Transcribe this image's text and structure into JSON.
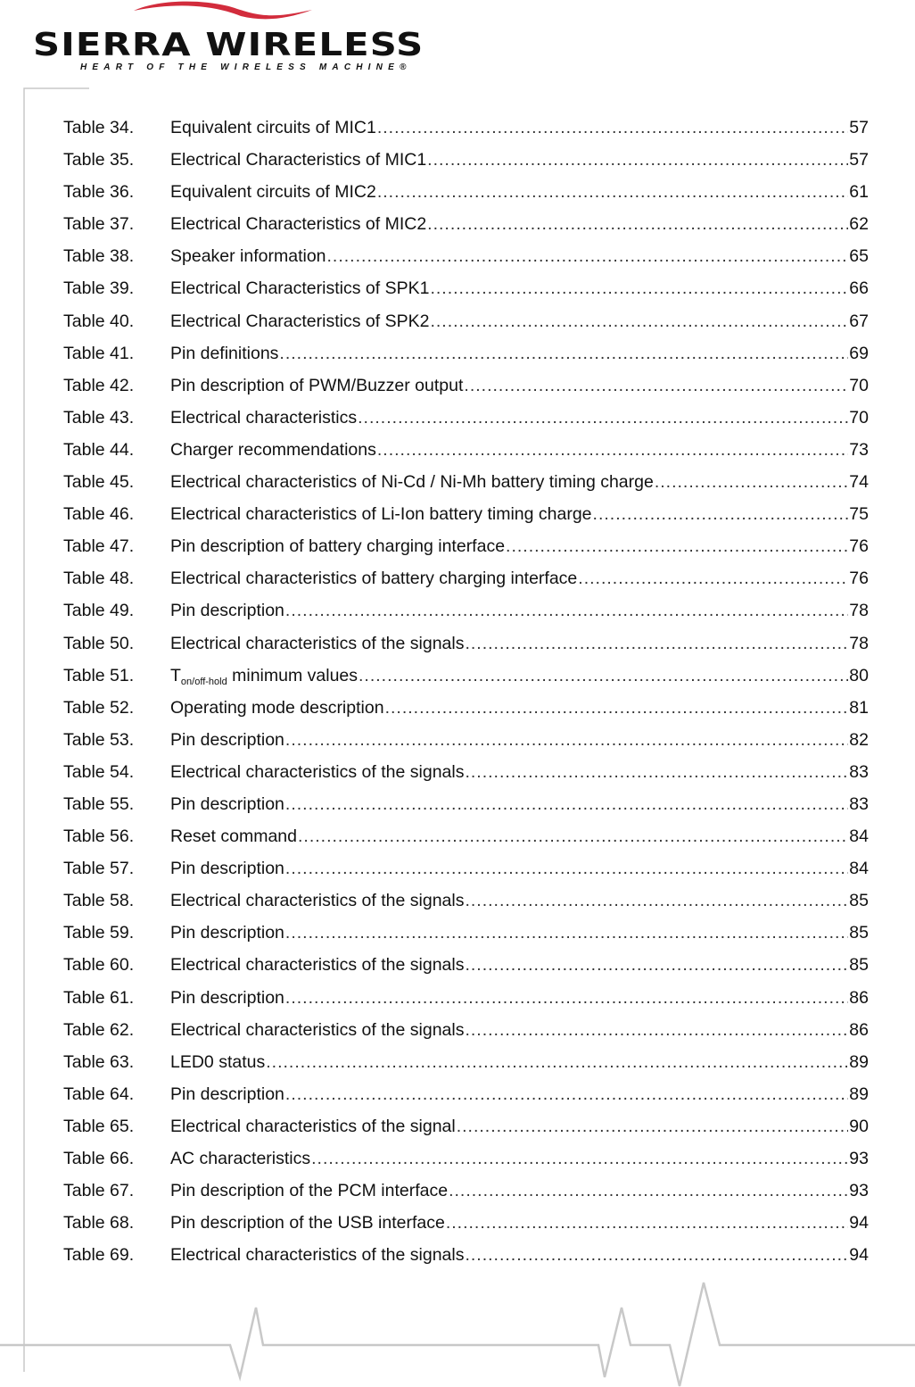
{
  "logo": {
    "brand": "SIERRA WIRELESS",
    "tagline": "HEART OF THE WIRELESS MACHINE®",
    "accent_color": "#d22c3c"
  },
  "toc": [
    {
      "label": "Table 34.",
      "title": "Equivalent circuits of MIC1",
      "page": "57"
    },
    {
      "label": "Table 35.",
      "title": "Electrical Characteristics of MIC1 ",
      "page": "57"
    },
    {
      "label": "Table 36.",
      "title": "Equivalent circuits of MIC2",
      "page": "61"
    },
    {
      "label": "Table 37.",
      "title": "Electrical Characteristics of MIC2 ",
      "page": "62"
    },
    {
      "label": "Table 38.",
      "title": "Speaker information",
      "page": "65"
    },
    {
      "label": "Table 39.",
      "title": "Electrical Characteristics of SPK1",
      "page": "66"
    },
    {
      "label": "Table 40.",
      "title": "Electrical Characteristics of SPK2",
      "page": "67"
    },
    {
      "label": "Table 41.",
      "title": "Pin definitions",
      "page": "69"
    },
    {
      "label": "Table 42.",
      "title": "Pin description of PWM/Buzzer output",
      "page": "70"
    },
    {
      "label": "Table 43.",
      "title": "Electrical characteristics ",
      "page": "70"
    },
    {
      "label": "Table 44.",
      "title": "Charger recommendations",
      "page": "73"
    },
    {
      "label": "Table 45.",
      "title": "Electrical characteristics of Ni-Cd / Ni-Mh battery timing charge",
      "page": "74"
    },
    {
      "label": "Table 46.",
      "title": "Electrical characteristics of Li-Ion battery timing charge",
      "page": "75"
    },
    {
      "label": "Table 47.",
      "title": "Pin description of battery charging interface",
      "page": "76"
    },
    {
      "label": "Table 48.",
      "title": "Electrical characteristics of battery charging interface",
      "page": "76"
    },
    {
      "label": "Table 49.",
      "title": "Pin description",
      "page": "78"
    },
    {
      "label": "Table 50.",
      "title": "Electrical characteristics of the signals ",
      "page": "78"
    },
    {
      "label": "Table 51.",
      "title": "T",
      "sub": "on/off-hold",
      "rest": " minimum values",
      "page": "80"
    },
    {
      "label": "Table 52.",
      "title": "Operating mode description",
      "page": "81"
    },
    {
      "label": "Table 53.",
      "title": "Pin description",
      "page": "82"
    },
    {
      "label": "Table 54.",
      "title": "Electrical characteristics of the signals ",
      "page": "83"
    },
    {
      "label": "Table 55.",
      "title": "Pin description",
      "page": "83"
    },
    {
      "label": "Table 56.",
      "title": "Reset command",
      "page": "84"
    },
    {
      "label": "Table 57.",
      "title": "Pin description",
      "page": "84"
    },
    {
      "label": "Table 58.",
      "title": "Electrical characteristics of the signals ",
      "page": "85"
    },
    {
      "label": "Table 59.",
      "title": "Pin description",
      "page": "85"
    },
    {
      "label": "Table 60.",
      "title": "Electrical characteristics of the signals ",
      "page": "85"
    },
    {
      "label": "Table 61.",
      "title": "Pin description",
      "page": "86"
    },
    {
      "label": "Table 62.",
      "title": "Electrical characteristics of the signals ",
      "page": "86"
    },
    {
      "label": "Table 63.",
      "title": "LED0 status ",
      "page": "89"
    },
    {
      "label": "Table 64.",
      "title": "Pin description",
      "page": "89"
    },
    {
      "label": "Table 65.",
      "title": "Electrical characteristics of the signal ",
      "page": "90"
    },
    {
      "label": "Table 66.",
      "title": "AC characteristics",
      "page": "93"
    },
    {
      "label": "Table 67.",
      "title": "Pin description of the PCM interface ",
      "page": "93"
    },
    {
      "label": "Table 68.",
      "title": "Pin description of the USB interface",
      "page": "94"
    },
    {
      "label": "Table 69.",
      "title": "Electrical characteristics of the signals ",
      "page": "94"
    }
  ]
}
